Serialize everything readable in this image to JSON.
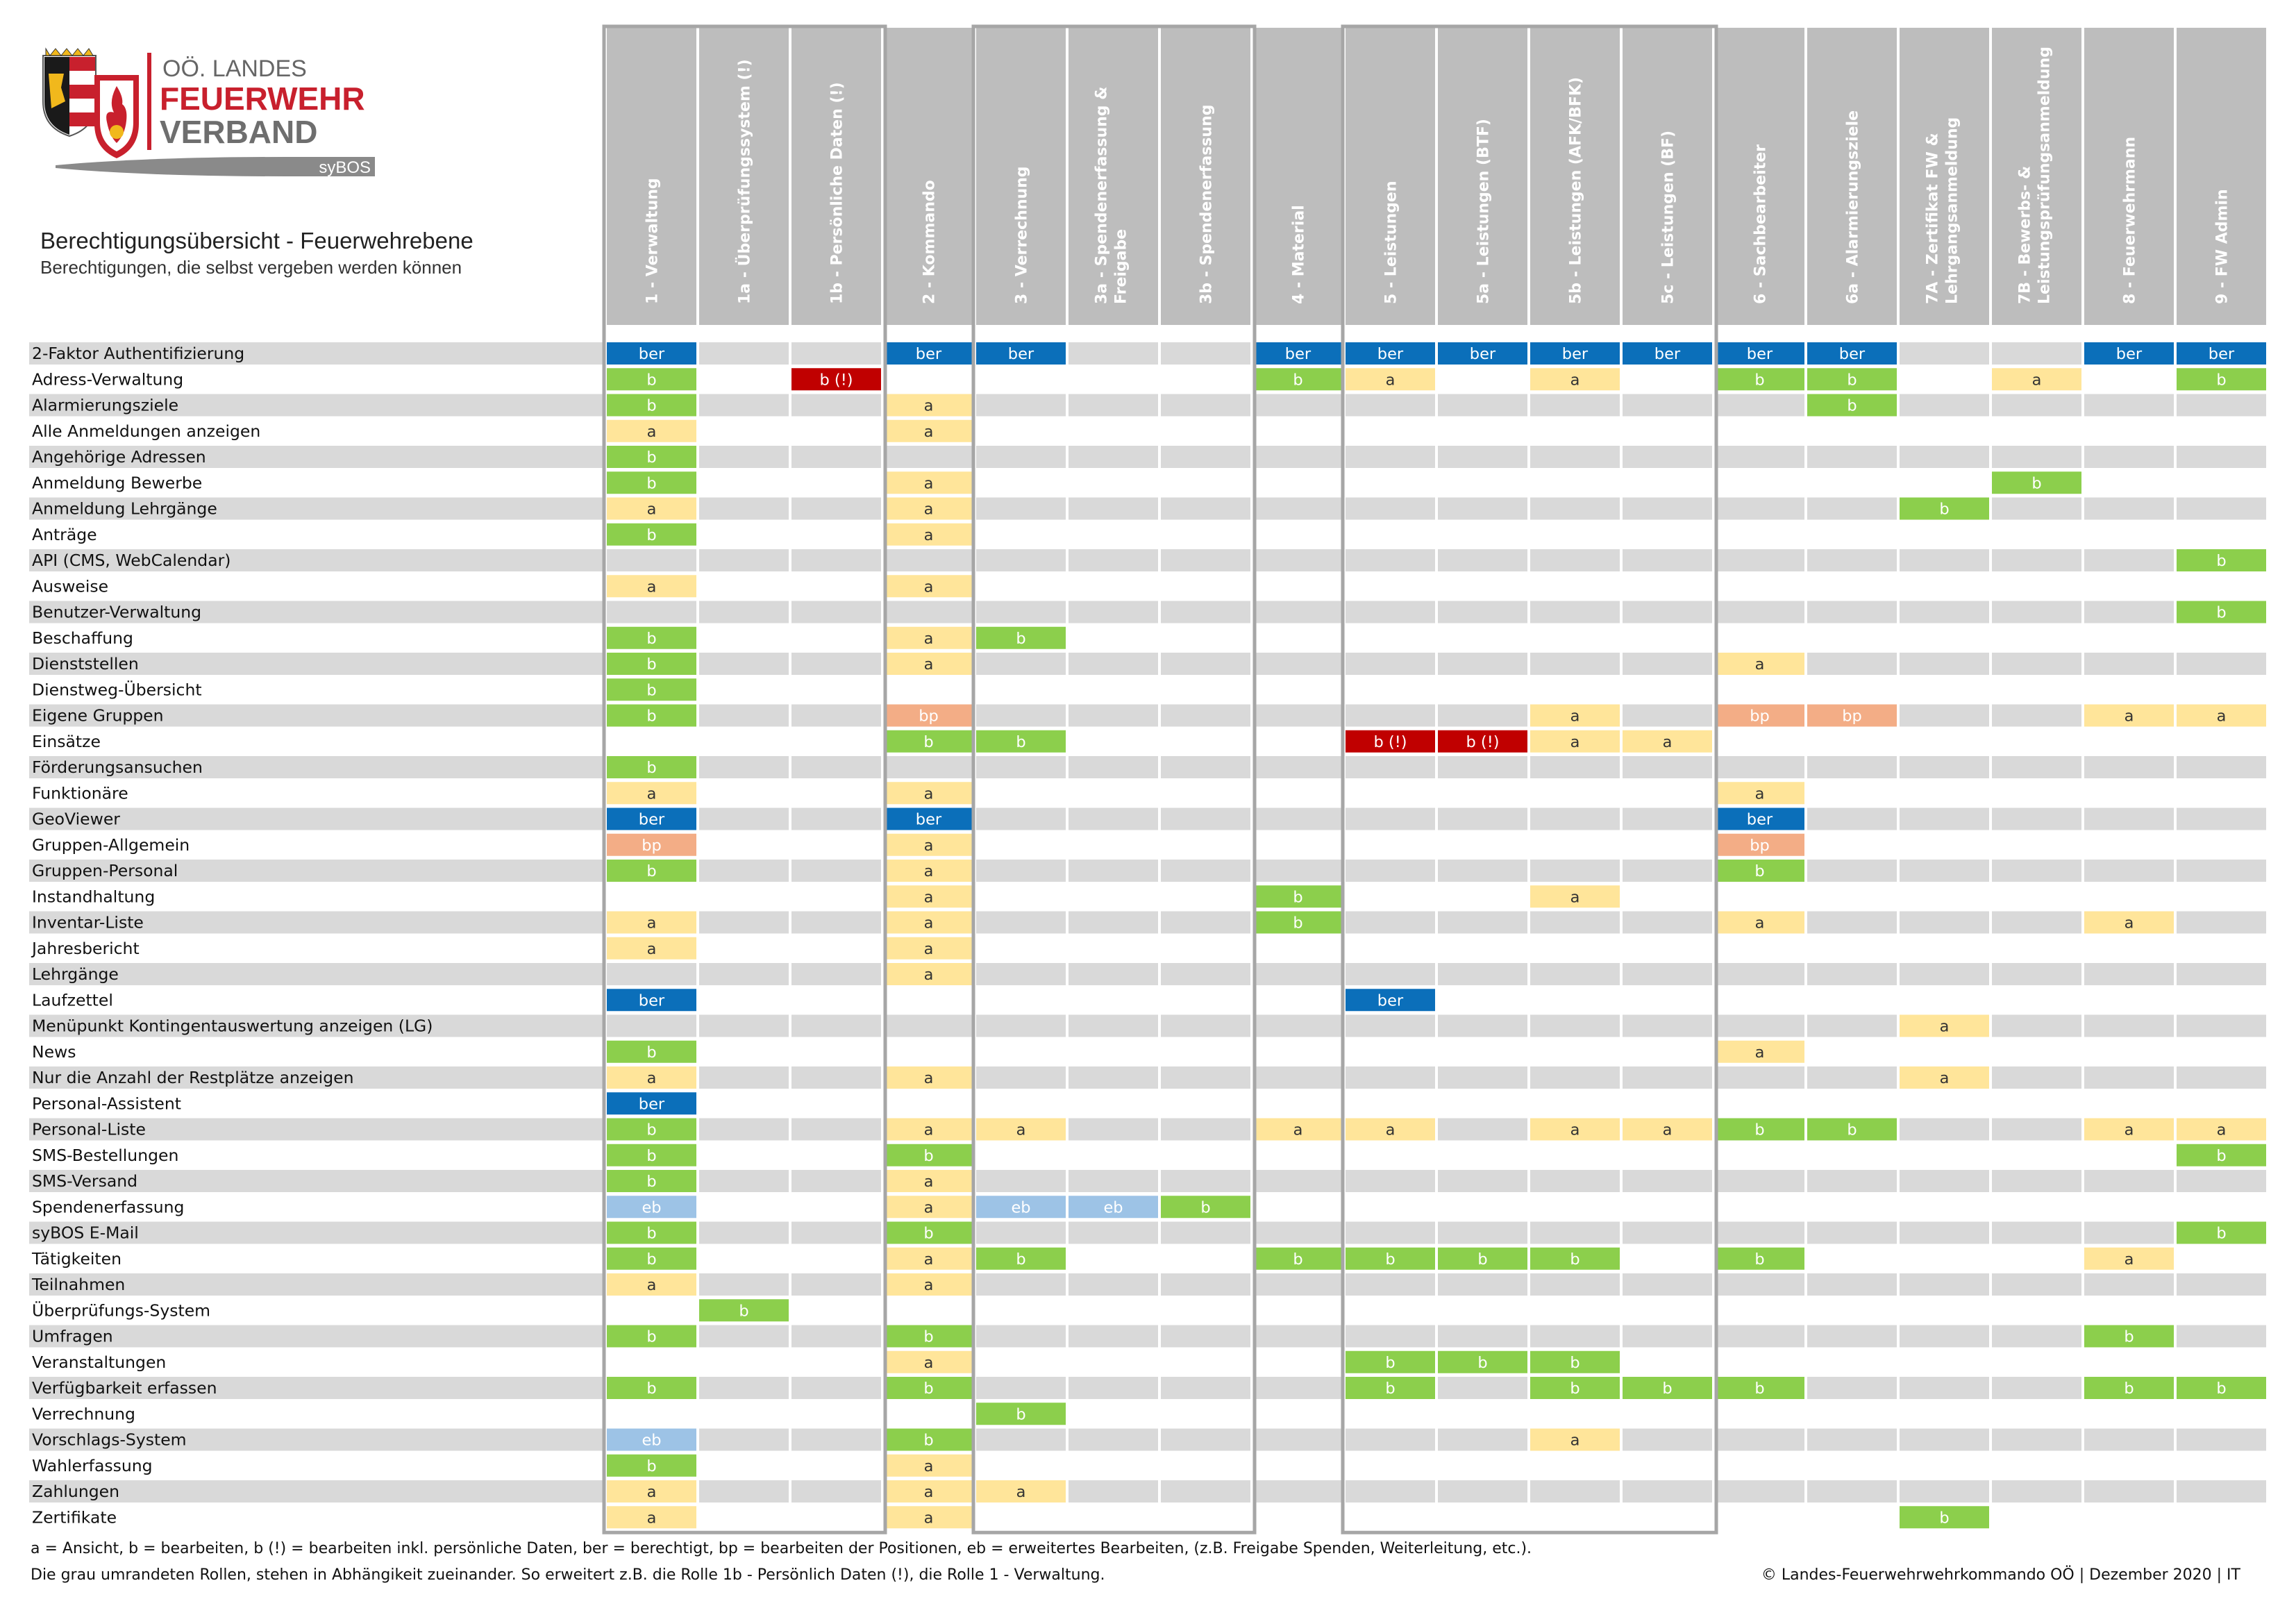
{
  "logo": {
    "line1": "OÖ. LANDES",
    "line2": "FEUERWEHR",
    "line3": "VERBAND",
    "badge": "syBOS",
    "icons": [
      "coat-of-arms-icon",
      "fire-emblem-icon"
    ],
    "colors": {
      "red": "#c8202d",
      "grey": "#6e6e6e",
      "gold": "#f1b81c"
    }
  },
  "title": "Berechtigungsübersicht - Feuerwehrebene",
  "subtitle": "Berechtigungen, die selbst vergeben werden können",
  "columns": [
    {
      "label": "1 - Verwaltung"
    },
    {
      "label": "1a - Überprüfungssystem (!)"
    },
    {
      "label": "1b - Persönliche Daten (!)"
    },
    {
      "label": "2 - Kommando"
    },
    {
      "label": "3 - Verrechnung"
    },
    {
      "label": "3a - Spendenerfassung &",
      "label2": "Freigabe"
    },
    {
      "label": "3b - Spendenerfassung"
    },
    {
      "label": "4 - Material"
    },
    {
      "label": "5 - Leistungen"
    },
    {
      "label": "5a - Leistungen (BTF)"
    },
    {
      "label": "5b - Leistungen (AFK/BFK)"
    },
    {
      "label": "5c - Leistungen (BF)"
    },
    {
      "label": "6 - Sachbearbeiter"
    },
    {
      "label": "6a - Alarmierungsziele"
    },
    {
      "label": "7A - Zertifikat FW &",
      "label2": "Lehrgangsanmeldung"
    },
    {
      "label": "7B - Bewerbs- &",
      "label2": "Leistungsprüfungsanmeldung"
    },
    {
      "label": "8 - Feuerwehrmann"
    },
    {
      "label": "9 - FW Admin"
    }
  ],
  "groups": [
    [
      0,
      2
    ],
    [
      4,
      6
    ],
    [
      8,
      11
    ]
  ],
  "legend_colors": {
    "ber": "#0b6fba",
    "b": "#8ccf4c",
    "a": "#ffe59a",
    "b (!)": "#c00000",
    "bp": "#f3ad86",
    "eb": "#9dc3e6"
  },
  "rows": [
    {
      "name": "2-Faktor Authentifizierung",
      "cells": {
        "0": "ber",
        "3": "ber",
        "4": "ber",
        "7": "ber",
        "8": "ber",
        "9": "ber",
        "10": "ber",
        "11": "ber",
        "12": "ber",
        "13": "ber",
        "16": "ber",
        "17": "ber"
      }
    },
    {
      "name": "Adress-Verwaltung",
      "cells": {
        "0": "b",
        "2": "b (!)",
        "7": "b",
        "8": "a",
        "10": "a",
        "12": "b",
        "13": "b",
        "15": "a",
        "17": "b"
      }
    },
    {
      "name": "Alarmierungsziele",
      "cells": {
        "0": "b",
        "3": "a",
        "13": "b"
      }
    },
    {
      "name": "Alle Anmeldungen anzeigen",
      "cells": {
        "0": "a",
        "3": "a"
      }
    },
    {
      "name": "Angehörige Adressen",
      "cells": {
        "0": "b"
      }
    },
    {
      "name": "Anmeldung Bewerbe",
      "cells": {
        "0": "b",
        "3": "a",
        "15": "b"
      }
    },
    {
      "name": "Anmeldung Lehrgänge",
      "cells": {
        "0": "a",
        "3": "a",
        "14": "b"
      }
    },
    {
      "name": "Anträge",
      "cells": {
        "0": "b",
        "3": "a"
      }
    },
    {
      "name": "API (CMS, WebCalendar)",
      "cells": {
        "17": "b"
      }
    },
    {
      "name": "Ausweise",
      "cells": {
        "0": "a",
        "3": "a"
      }
    },
    {
      "name": "Benutzer-Verwaltung",
      "cells": {
        "17": "b"
      }
    },
    {
      "name": "Beschaffung",
      "cells": {
        "0": "b",
        "3": "a",
        "4": "b"
      }
    },
    {
      "name": "Dienststellen",
      "cells": {
        "0": "b",
        "3": "a",
        "12": "a"
      }
    },
    {
      "name": "Dienstweg-Übersicht",
      "cells": {
        "0": "b"
      }
    },
    {
      "name": "Eigene Gruppen",
      "cells": {
        "0": "b",
        "3": "bp",
        "10": "a",
        "12": "bp",
        "13": "bp",
        "16": "a",
        "17": "a"
      }
    },
    {
      "name": "Einsätze",
      "cells": {
        "3": "b",
        "4": "b",
        "8": "b (!)",
        "9": "b (!)",
        "10": "a",
        "11": "a"
      }
    },
    {
      "name": "Förderungsansuchen",
      "cells": {
        "0": "b"
      }
    },
    {
      "name": "Funktionäre",
      "cells": {
        "0": "a",
        "3": "a",
        "12": "a"
      }
    },
    {
      "name": "GeoViewer",
      "cells": {
        "0": "ber",
        "3": "ber",
        "12": "ber"
      }
    },
    {
      "name": "Gruppen-Allgemein",
      "cells": {
        "0": "bp",
        "3": "a",
        "12": "bp"
      }
    },
    {
      "name": "Gruppen-Personal",
      "cells": {
        "0": "b",
        "3": "a",
        "12": "b"
      }
    },
    {
      "name": "Instandhaltung",
      "cells": {
        "3": "a",
        "7": "b",
        "10": "a"
      }
    },
    {
      "name": "Inventar-Liste",
      "cells": {
        "0": "a",
        "3": "a",
        "7": "b",
        "12": "a",
        "16": "a"
      }
    },
    {
      "name": "Jahresbericht",
      "cells": {
        "0": "a",
        "3": "a"
      }
    },
    {
      "name": "Lehrgänge",
      "cells": {
        "3": "a"
      }
    },
    {
      "name": "Laufzettel",
      "cells": {
        "0": "ber",
        "8": "ber"
      }
    },
    {
      "name": "Menüpunkt Kontingentauswertung anzeigen (LG)",
      "cells": {
        "14": "a"
      }
    },
    {
      "name": "News",
      "cells": {
        "0": "b",
        "12": "a"
      }
    },
    {
      "name": "Nur die Anzahl der Restplätze anzeigen",
      "cells": {
        "0": "a",
        "3": "a",
        "14": "a"
      }
    },
    {
      "name": "Personal-Assistent",
      "cells": {
        "0": "ber"
      }
    },
    {
      "name": "Personal-Liste",
      "cells": {
        "0": "b",
        "3": "a",
        "4": "a",
        "7": "a",
        "8": "a",
        "10": "a",
        "11": "a",
        "12": "b",
        "13": "b",
        "16": "a",
        "17": "a"
      }
    },
    {
      "name": "SMS-Bestellungen",
      "cells": {
        "0": "b",
        "3": "b",
        "17": "b"
      }
    },
    {
      "name": "SMS-Versand",
      "cells": {
        "0": "b",
        "3": "a"
      }
    },
    {
      "name": "Spendenerfassung",
      "cells": {
        "0": "eb",
        "3": "a",
        "4": "eb",
        "5": "eb",
        "6": "b"
      }
    },
    {
      "name": "syBOS E-Mail",
      "cells": {
        "0": "b",
        "3": "b",
        "17": "b"
      }
    },
    {
      "name": "Tätigkeiten",
      "cells": {
        "0": "b",
        "3": "a",
        "4": "b",
        "7": "b",
        "8": "b",
        "9": "b",
        "10": "b",
        "12": "b",
        "16": "a"
      }
    },
    {
      "name": "Teilnahmen",
      "cells": {
        "0": "a",
        "3": "a"
      }
    },
    {
      "name": "Überprüfungs-System",
      "cells": {
        "1": "b"
      }
    },
    {
      "name": "Umfragen",
      "cells": {
        "0": "b",
        "3": "b",
        "16": "b"
      }
    },
    {
      "name": "Veranstaltungen",
      "cells": {
        "3": "a",
        "8": "b",
        "9": "b",
        "10": "b"
      }
    },
    {
      "name": "Verfügbarkeit erfassen",
      "cells": {
        "0": "b",
        "3": "b",
        "8": "b",
        "10": "b",
        "11": "b",
        "12": "b",
        "16": "b",
        "17": "b"
      }
    },
    {
      "name": "Verrechnung",
      "cells": {
        "4": "b"
      }
    },
    {
      "name": "Vorschlags-System",
      "cells": {
        "0": "eb",
        "3": "b",
        "10": "a"
      }
    },
    {
      "name": "Wahlerfassung",
      "cells": {
        "0": "b",
        "3": "a"
      }
    },
    {
      "name": "Zahlungen",
      "cells": {
        "0": "a",
        "3": "a",
        "4": "a"
      }
    },
    {
      "name": "Zertifikate",
      "cells": {
        "0": "a",
        "3": "a",
        "14": "b"
      }
    }
  ],
  "footer": {
    "legend": "a = Ansicht, b = bearbeiten, b (!) = bearbeiten inkl. persönliche Daten, ber = berechtigt, bp = bearbeiten der Positionen, eb = erweitertes Bearbeiten, (z.B. Freigabe Spenden, Weiterleitung, etc.).",
    "note": "Die grau umrandeten Rollen, stehen in Abhängikeit zueinander. So erweitert z.B. die Rolle 1b - Persönlich Daten (!), die Rolle 1 - Verwaltung.",
    "copyright": "© Landes-Feuerwehrwehrkommando OÖ | Dezember 2020 | IT"
  }
}
